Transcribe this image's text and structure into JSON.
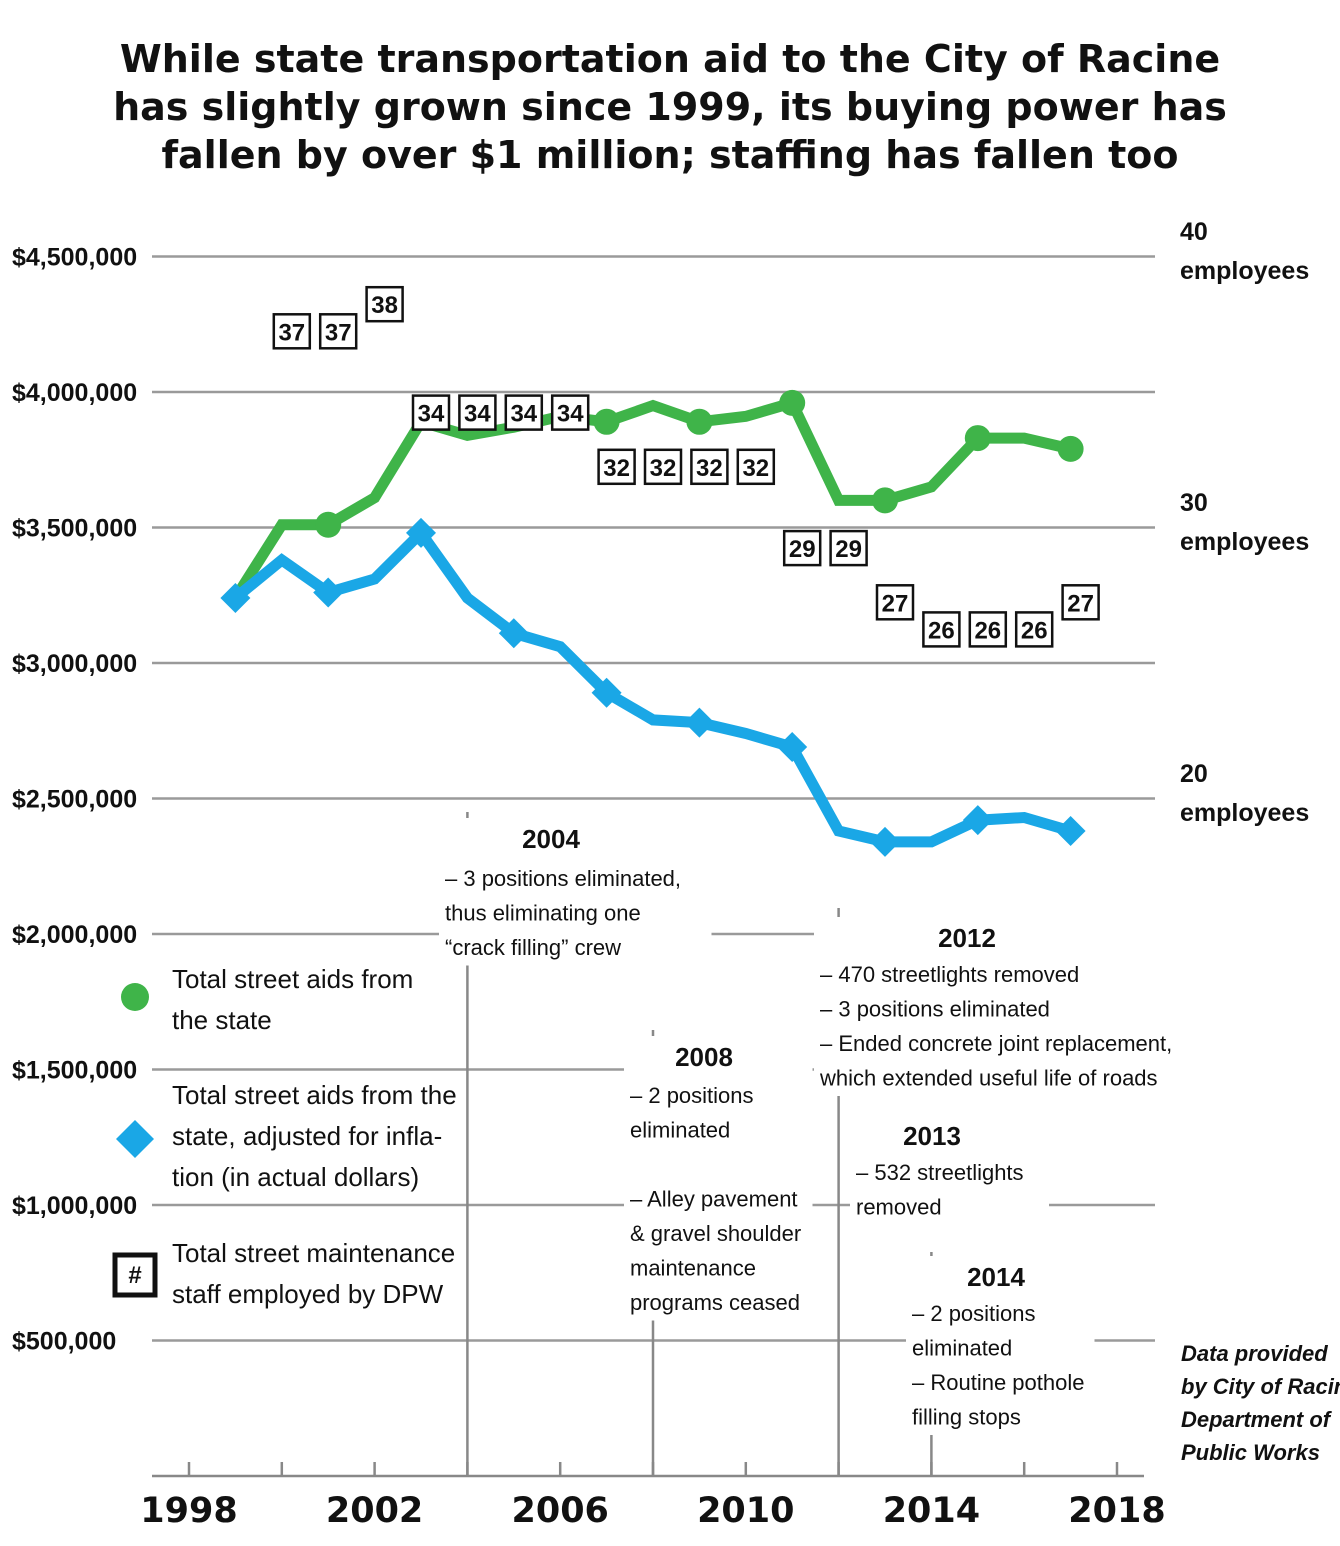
{
  "chart_data": {
    "type": "line",
    "title": [
      "While state transportation aid to the City of Racine",
      "has slightly grown since 1999, its buying power has",
      "fallen by over $1 million; staffing has fallen too"
    ],
    "xlim": [
      1998,
      2018
    ],
    "x_ticks": [
      1998,
      2002,
      2006,
      2010,
      2014,
      2018
    ],
    "ylim": [
      0,
      4500000
    ],
    "y_ticks": [
      {
        "value": 4500000,
        "label": "$4,500,000"
      },
      {
        "value": 4000000,
        "label": "$4,000,000"
      },
      {
        "value": 3500000,
        "label": "$3,500,000"
      },
      {
        "value": 3000000,
        "label": "$3,000,000"
      },
      {
        "value": 2500000,
        "label": "$2,500,000"
      },
      {
        "value": 2000000,
        "label": "$2,000,000"
      },
      {
        "value": 1500000,
        "label": "$1,500,000"
      },
      {
        "value": 1000000,
        "label": "$1,000,000"
      },
      {
        "value": 500000,
        "label": "$500,000"
      }
    ],
    "y2_ticks": [
      {
        "value": 40,
        "label": [
          "40",
          "employees"
        ]
      },
      {
        "value": 30,
        "label": [
          "30",
          "employees"
        ]
      },
      {
        "value": 20,
        "label": [
          "20",
          "employees"
        ]
      }
    ],
    "series": [
      {
        "name": "Total street aids from the state",
        "color": "#3fb449",
        "marker": "circle",
        "points": [
          {
            "x": 1999,
            "y": 3240000,
            "marked": false
          },
          {
            "x": 2000,
            "y": 3510000,
            "marked": false
          },
          {
            "x": 2001,
            "y": 3510000,
            "marked": true
          },
          {
            "x": 2002,
            "y": 3610000,
            "marked": false
          },
          {
            "x": 2003,
            "y": 3890000,
            "marked": false
          },
          {
            "x": 2004,
            "y": 3840000,
            "marked": false
          },
          {
            "x": 2005,
            "y": 3870000,
            "marked": false
          },
          {
            "x": 2006,
            "y": 3910000,
            "marked": false
          },
          {
            "x": 2007,
            "y": 3890000,
            "marked": true
          },
          {
            "x": 2008,
            "y": 3950000,
            "marked": false
          },
          {
            "x": 2009,
            "y": 3890000,
            "marked": true
          },
          {
            "x": 2010,
            "y": 3910000,
            "marked": false
          },
          {
            "x": 2011,
            "y": 3960000,
            "marked": true
          },
          {
            "x": 2012,
            "y": 3600000,
            "marked": false
          },
          {
            "x": 2013,
            "y": 3600000,
            "marked": true
          },
          {
            "x": 2014,
            "y": 3650000,
            "marked": false
          },
          {
            "x": 2015,
            "y": 3830000,
            "marked": true
          },
          {
            "x": 2016,
            "y": 3830000,
            "marked": false
          },
          {
            "x": 2017,
            "y": 3790000,
            "marked": true
          }
        ]
      },
      {
        "name": "Total street aids from the state, adjusted for inflation (in actual dollars)",
        "color": "#1aa7e6",
        "marker": "diamond",
        "points": [
          {
            "x": 1999,
            "y": 3240000,
            "marked": true
          },
          {
            "x": 2000,
            "y": 3380000,
            "marked": false
          },
          {
            "x": 2001,
            "y": 3260000,
            "marked": true
          },
          {
            "x": 2002,
            "y": 3310000,
            "marked": false
          },
          {
            "x": 2003,
            "y": 3480000,
            "marked": true
          },
          {
            "x": 2004,
            "y": 3240000,
            "marked": false
          },
          {
            "x": 2005,
            "y": 3110000,
            "marked": true
          },
          {
            "x": 2006,
            "y": 3060000,
            "marked": false
          },
          {
            "x": 2007,
            "y": 2890000,
            "marked": true
          },
          {
            "x": 2008,
            "y": 2790000,
            "marked": false
          },
          {
            "x": 2009,
            "y": 2780000,
            "marked": true
          },
          {
            "x": 2010,
            "y": 2740000,
            "marked": false
          },
          {
            "x": 2011,
            "y": 2690000,
            "marked": true
          },
          {
            "x": 2012,
            "y": 2380000,
            "marked": false
          },
          {
            "x": 2013,
            "y": 2340000,
            "marked": true
          },
          {
            "x": 2014,
            "y": 2340000,
            "marked": false
          },
          {
            "x": 2015,
            "y": 2420000,
            "marked": true
          },
          {
            "x": 2016,
            "y": 2430000,
            "marked": false
          },
          {
            "x": 2017,
            "y": 2380000,
            "marked": true
          }
        ]
      }
    ],
    "staff": {
      "name": "Total street maintenance staff employed by DPW",
      "points": [
        {
          "x": 2000,
          "value": 37
        },
        {
          "x": 2001,
          "value": 37
        },
        {
          "x": 2002,
          "value": 38
        },
        {
          "x": 2003,
          "value": 34
        },
        {
          "x": 2004,
          "value": 34
        },
        {
          "x": 2005,
          "value": 34
        },
        {
          "x": 2006,
          "value": 34
        },
        {
          "x": 2007,
          "value": 32
        },
        {
          "x": 2008,
          "value": 32
        },
        {
          "x": 2009,
          "value": 32
        },
        {
          "x": 2010,
          "value": 32
        },
        {
          "x": 2011,
          "value": 29
        },
        {
          "x": 2012,
          "value": 29
        },
        {
          "x": 2013,
          "value": 27
        },
        {
          "x": 2014,
          "value": 26
        },
        {
          "x": 2015,
          "value": 26
        },
        {
          "x": 2016,
          "value": 26
        },
        {
          "x": 2017,
          "value": 27
        }
      ]
    },
    "legend": {
      "placement": "left",
      "green_label": [
        "Total street aids from",
        "the state"
      ],
      "blue_label": [
        "Total street aids from the",
        "state, adjusted for infla-",
        "tion (in actual dollars)"
      ],
      "staff_label": [
        "Total street maintenance",
        "staff employed by DPW"
      ],
      "staff_symbol": "#"
    },
    "annotations": [
      {
        "x": 2004,
        "year": "2004",
        "lines": [
          "– 3 positions eliminated,",
          "thus eliminating one",
          "“crack filling” crew"
        ]
      },
      {
        "x": 2008,
        "year": "2008",
        "lines": [
          "– 2 positions",
          "eliminated",
          "",
          "– Alley pavement",
          "& gravel shoulder",
          "maintenance",
          "programs ceased"
        ]
      },
      {
        "x": 2012,
        "year": "2012",
        "lines": [
          "– 470 streetlights removed",
          "– 3 positions eliminated",
          "– Ended concrete joint replacement,",
          "which extended useful life of roads"
        ]
      },
      {
        "x": 2013,
        "year": "2013",
        "lines": [
          "– 532 streetlights",
          "removed"
        ]
      },
      {
        "x": 2014,
        "year": "2014",
        "lines": [
          "– 2 positions",
          "eliminated",
          "– Routine pothole",
          "filling stops"
        ]
      }
    ],
    "source": [
      "Data provided",
      "by City of Racine",
      "Department of",
      "Public Works"
    ],
    "grid": true
  }
}
